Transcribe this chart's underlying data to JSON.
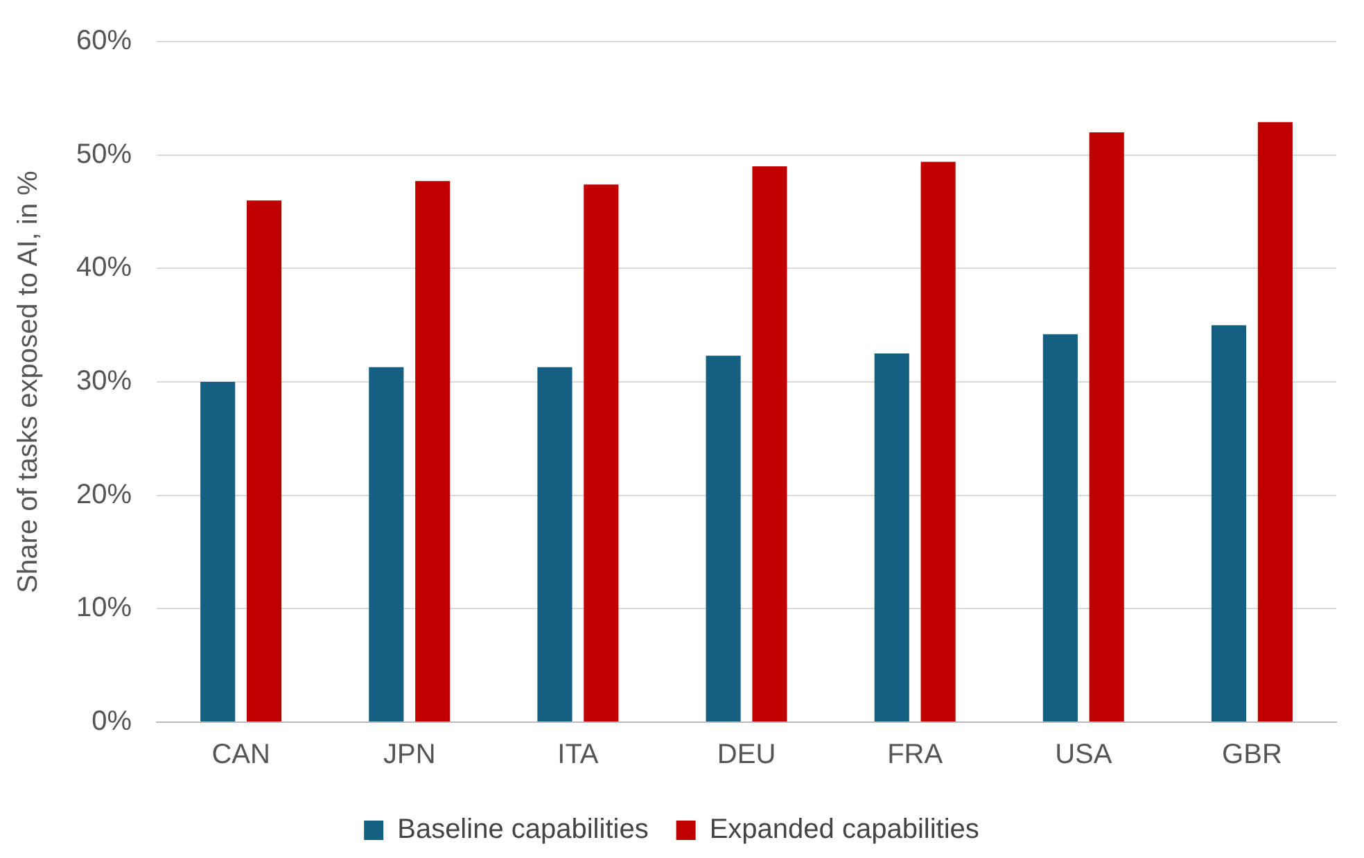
{
  "chart_data": {
    "type": "bar",
    "ylabel": "Share of tasks exposed to AI, in %",
    "categories": [
      "CAN",
      "JPN",
      "ITA",
      "DEU",
      "FRA",
      "USA",
      "GBR"
    ],
    "series": [
      {
        "name": "Baseline capabilities",
        "color": "#156082",
        "values": [
          30.0,
          31.3,
          31.3,
          32.3,
          32.5,
          34.2,
          35.0
        ]
      },
      {
        "name": "Expanded capabilities",
        "color": "#c00000",
        "values": [
          46.0,
          47.7,
          47.4,
          49.0,
          49.4,
          52.0,
          52.9
        ]
      }
    ],
    "ylim": [
      0,
      60
    ],
    "yticks": [
      {
        "value": 0,
        "label": "0%"
      },
      {
        "value": 10,
        "label": "10%"
      },
      {
        "value": 20,
        "label": "20%"
      },
      {
        "value": 30,
        "label": "30%"
      },
      {
        "value": 40,
        "label": "40%"
      },
      {
        "value": 50,
        "label": "50%"
      },
      {
        "value": 60,
        "label": "60%"
      }
    ],
    "grid": "y",
    "legend": "bottom"
  }
}
